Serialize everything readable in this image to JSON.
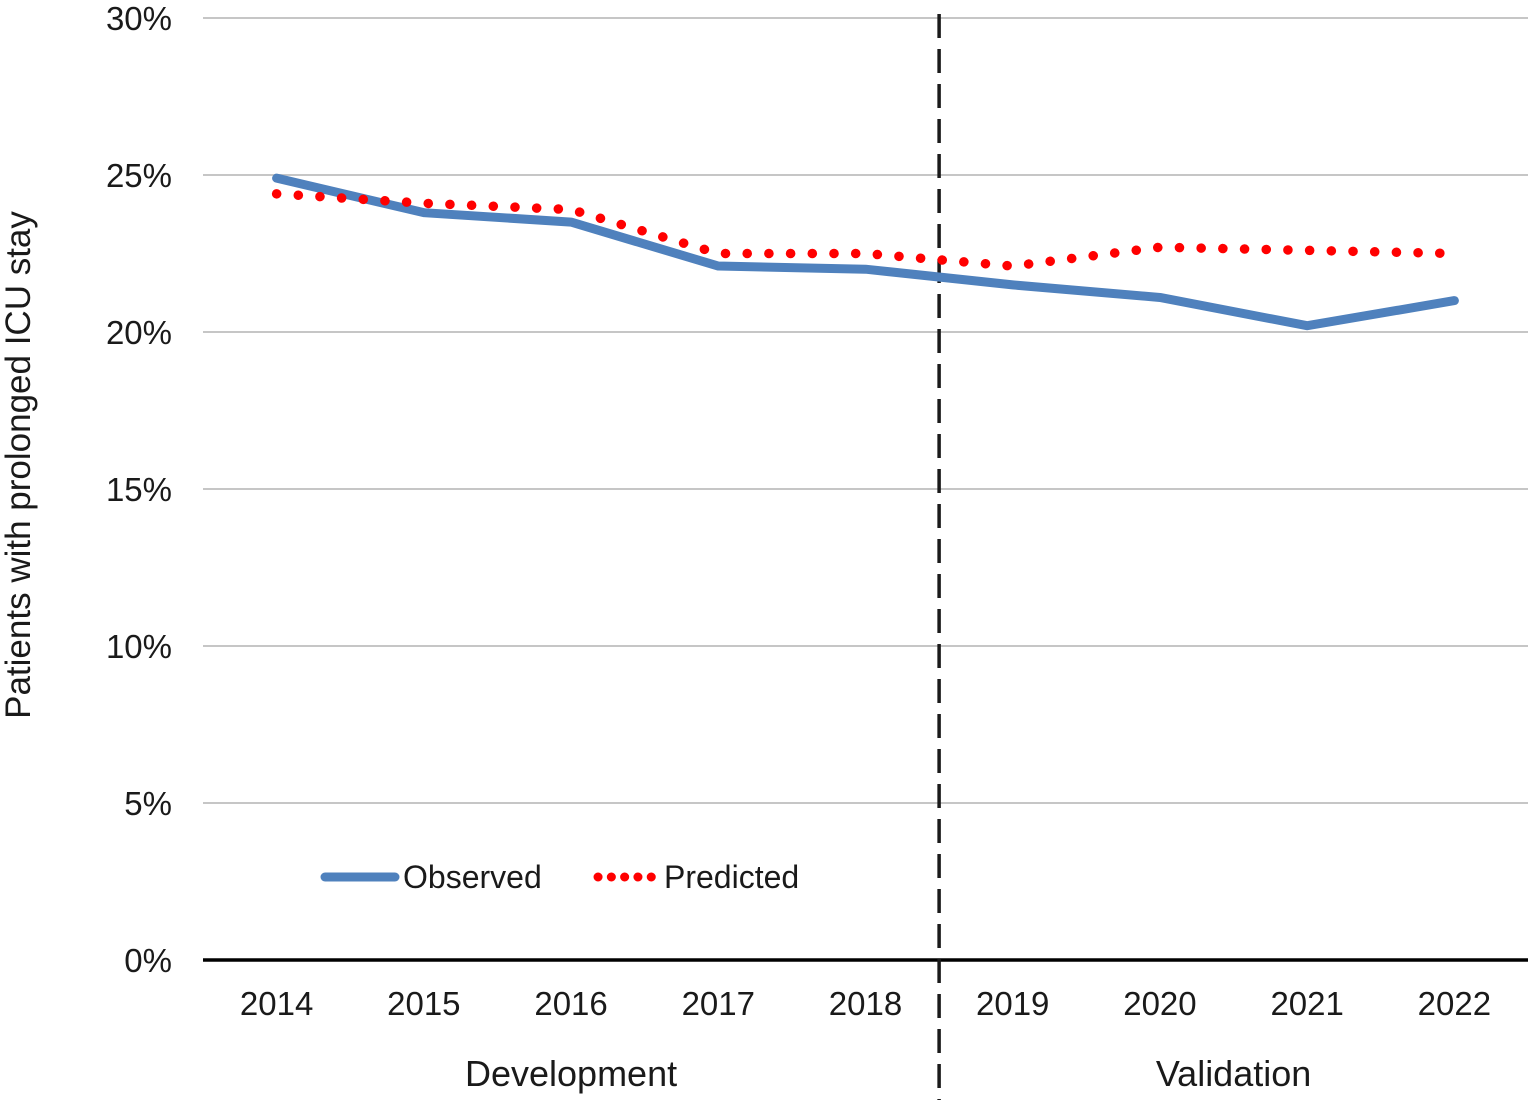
{
  "chart_data": {
    "type": "line",
    "title": "",
    "xlabel": "",
    "ylabel": "Patients with prolonged ICU stay",
    "categories": [
      "2014",
      "2015",
      "2016",
      "2017",
      "2018",
      "2019",
      "2020",
      "2021",
      "2022"
    ],
    "series": [
      {
        "name": "Observed",
        "style": "solid",
        "color": "#4F81BD",
        "values": [
          24.9,
          23.8,
          23.5,
          22.1,
          22.0,
          21.5,
          21.1,
          20.2,
          21.0
        ]
      },
      {
        "name": "Predicted",
        "style": "dotted",
        "color": "#FF0000",
        "values": [
          24.4,
          24.1,
          23.9,
          22.5,
          22.5,
          22.1,
          22.7,
          22.6,
          22.5
        ]
      }
    ],
    "ylim": [
      0,
      30
    ],
    "ytick_step": 5,
    "ytick_labels": [
      "0%",
      "5%",
      "10%",
      "15%",
      "20%",
      "25%",
      "30%"
    ],
    "grid": "horizontal",
    "separator": {
      "between": [
        "2018",
        "2019"
      ],
      "style": "dashed"
    },
    "phases": [
      {
        "label": "Development",
        "from": "2014",
        "to": "2018"
      },
      {
        "label": "Validation",
        "from": "2019",
        "to": "2022"
      }
    ],
    "legend": {
      "position": "inside-bottom-left",
      "items": [
        "Observed",
        "Predicted"
      ]
    }
  },
  "colors": {
    "gridline": "#C6C6C6",
    "axis": "#000000",
    "separator": "#1A1A1A",
    "text": "#1A1A1A"
  }
}
